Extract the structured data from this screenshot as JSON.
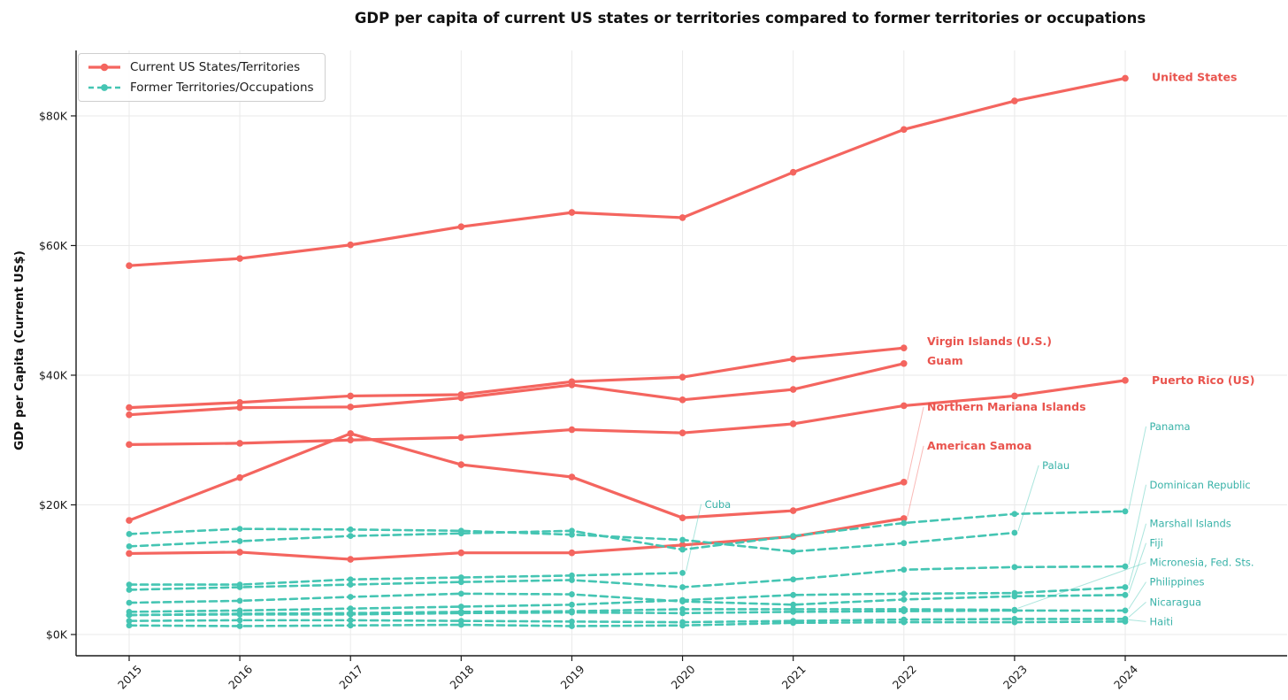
{
  "title": "GDP per capita of current US states or territories compared to former territories or occupations",
  "ylabel": "GDP per Capita (Current US$)",
  "legend": {
    "position": "upper left",
    "current": {
      "label": "Current US States/Territories"
    },
    "former": {
      "label": "Former Territories/Occupations"
    }
  },
  "colors": {
    "current_line": "#F4655F",
    "current_label": "#E9544E",
    "former_line": "#45C5B3",
    "former_label": "#38B2A8",
    "grid": "#EAEAEA",
    "axis": "#1A1A1A",
    "background": "#FFFFFF"
  },
  "chart_data": {
    "type": "line",
    "x": [
      2015,
      2016,
      2017,
      2018,
      2019,
      2020,
      2021,
      2022,
      2023,
      2024
    ],
    "unit": "thousand current US$ per person",
    "ylim_k": [
      -3,
      90
    ],
    "yticks": [
      {
        "value_k": 0,
        "label": "$0K"
      },
      {
        "value_k": 20,
        "label": "$20K"
      },
      {
        "value_k": 40,
        "label": "$40K"
      },
      {
        "value_k": 60,
        "label": "$60K"
      },
      {
        "value_k": 80,
        "label": "$80K"
      }
    ],
    "grid": true,
    "series": [
      {
        "name": "United States",
        "group": "current",
        "start_year": 2015,
        "values_k": [
          56.9,
          58.0,
          60.1,
          62.9,
          65.1,
          64.3,
          71.3,
          77.9,
          82.3,
          85.8
        ],
        "label": {
          "text": "United States",
          "year": 2024.24,
          "value_k": 85.9,
          "leader": false
        }
      },
      {
        "name": "Virgin Islands (U.S.)",
        "group": "current",
        "start_year": 2015,
        "values_k": [
          35.0,
          35.8,
          36.8,
          37.0,
          39.0,
          39.7,
          42.5,
          44.2
        ],
        "label": {
          "text": "Virgin Islands (U.S.)",
          "year": 2022.21,
          "value_k": 45.2,
          "leader": false
        }
      },
      {
        "name": "Guam",
        "group": "current",
        "start_year": 2015,
        "values_k": [
          33.9,
          35.0,
          35.1,
          36.5,
          38.5,
          36.2,
          37.8,
          41.8
        ],
        "label": {
          "text": "Guam",
          "year": 2022.21,
          "value_k": 42.2,
          "leader": false
        }
      },
      {
        "name": "Puerto Rico (US)",
        "group": "current",
        "start_year": 2015,
        "values_k": [
          29.3,
          29.5,
          30.0,
          30.4,
          31.6,
          31.1,
          32.5,
          35.3,
          36.8,
          39.2
        ],
        "label": {
          "text": "Puerto Rico (US)",
          "year": 2024.24,
          "value_k": 39.2,
          "leader": false
        }
      },
      {
        "name": "Northern Mariana Islands",
        "group": "current",
        "start_year": 2015,
        "values_k": [
          17.6,
          24.2,
          31.0,
          26.2,
          24.3,
          18.0,
          19.1,
          23.5
        ],
        "label": {
          "text": "Northern Mariana Islands",
          "year": 2022.21,
          "value_k": 35.1,
          "leader": true
        }
      },
      {
        "name": "American Samoa",
        "group": "current",
        "start_year": 2015,
        "values_k": [
          12.5,
          12.7,
          11.6,
          12.6,
          12.6,
          13.8,
          15.1,
          17.9
        ],
        "label": {
          "text": "American Samoa",
          "year": 2022.21,
          "value_k": 29.1,
          "leader": true
        }
      },
      {
        "name": "Panama",
        "group": "former",
        "start_year": 2015,
        "values_k": [
          13.6,
          14.4,
          15.2,
          15.6,
          16.0,
          13.1,
          15.2,
          17.2,
          18.6,
          19.0
        ],
        "label": {
          "text": "Panama",
          "year": 2024.22,
          "value_k": 32.1,
          "leader": true
        }
      },
      {
        "name": "Palau",
        "group": "former",
        "start_year": 2015,
        "values_k": [
          15.5,
          16.3,
          16.2,
          16.0,
          15.4,
          14.6,
          12.8,
          14.1,
          15.7
        ],
        "label": {
          "text": "Palau",
          "year": 2023.25,
          "value_k": 26.1,
          "leader": true
        }
      },
      {
        "name": "Dominican Republic",
        "group": "former",
        "start_year": 2015,
        "values_k": [
          6.9,
          7.3,
          7.7,
          8.1,
          8.4,
          7.3,
          8.5,
          10.0,
          10.4,
          10.5
        ],
        "label": {
          "text": "Dominican Republic",
          "year": 2024.22,
          "value_k": 23.1,
          "leader": true
        }
      },
      {
        "name": "Cuba",
        "group": "former",
        "start_year": 2015,
        "values_k": [
          7.7,
          7.7,
          8.5,
          8.8,
          9.1,
          9.5
        ],
        "label": {
          "text": "Cuba",
          "year": 2020.2,
          "value_k": 20.1,
          "leader": true
        }
      },
      {
        "name": "Marshall Islands",
        "group": "former",
        "start_year": 2015,
        "values_k": [
          3.5,
          3.7,
          4.0,
          4.3,
          4.6,
          5.3,
          6.1,
          6.3,
          6.4,
          7.3
        ],
        "label": {
          "text": "Marshall Islands",
          "year": 2024.22,
          "value_k": 17.1,
          "leader": true
        }
      },
      {
        "name": "Fiji",
        "group": "former",
        "start_year": 2015,
        "values_k": [
          4.9,
          5.2,
          5.8,
          6.3,
          6.2,
          5.1,
          4.6,
          5.4,
          5.9,
          6.1
        ],
        "label": {
          "text": "Fiji",
          "year": 2024.22,
          "value_k": 14.1,
          "leader": true
        }
      },
      {
        "name": "Micronesia, Fed. Sts.",
        "group": "former",
        "start_year": 2015,
        "values_k": [
          3.0,
          3.2,
          3.3,
          3.5,
          3.6,
          3.9,
          3.9,
          3.9,
          3.8
        ],
        "label": {
          "text": "Micronesia, Fed. Sts.",
          "year": 2024.22,
          "value_k": 11.1,
          "leader": true
        }
      },
      {
        "name": "Philippines",
        "group": "former",
        "start_year": 2015,
        "values_k": [
          3.0,
          3.1,
          3.1,
          3.3,
          3.4,
          3.3,
          3.5,
          3.6,
          3.7,
          3.7
        ],
        "label": {
          "text": "Philippines",
          "year": 2024.22,
          "value_k": 8.1,
          "leader": true
        }
      },
      {
        "name": "Nicaragua",
        "group": "former",
        "start_year": 2015,
        "values_k": [
          2.1,
          2.2,
          2.2,
          2.1,
          2.0,
          1.9,
          2.1,
          2.3,
          2.4,
          2.4
        ],
        "label": {
          "text": "Nicaragua",
          "year": 2024.22,
          "value_k": 5.0,
          "leader": true
        }
      },
      {
        "name": "Haiti",
        "group": "former",
        "start_year": 2015,
        "values_k": [
          1.4,
          1.3,
          1.4,
          1.5,
          1.3,
          1.4,
          1.8,
          1.9,
          1.9,
          2.0
        ],
        "label": {
          "text": "Haiti",
          "year": 2024.22,
          "value_k": 2.0,
          "leader": true
        }
      }
    ]
  }
}
